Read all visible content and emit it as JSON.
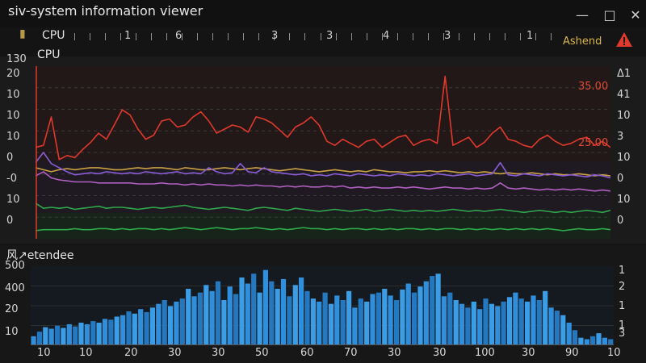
{
  "window": {
    "title": "siv-system information viewer",
    "minimize_icon": "minimize-icon",
    "maximize_icon": "maximize-icon",
    "close_icon": "close-icon"
  },
  "toolbar": {
    "pin_icon": "pin-icon",
    "cpu_label": "CPU",
    "ruler_labels": [
      "1",
      "6",
      "3",
      "3",
      "4",
      "3",
      "1"
    ],
    "status_text": "Ashend",
    "warning_icon": "warning-icon"
  },
  "colors": {
    "background": "#141414",
    "red": "#e0392b",
    "orange": "#c9a043",
    "purple": "#8a5cd6",
    "pink": "#b05fc0",
    "green": "#2ea84a",
    "blue": "#2f8fdc",
    "warning": "#e03a2e"
  },
  "cpu_panel": {
    "title": "CPU",
    "top_value": "130",
    "y_left": [
      "20",
      "10",
      "10",
      "10",
      "0",
      "-0",
      "10",
      "0"
    ],
    "y_right": [
      "Δ1",
      "41",
      "10",
      "3",
      "10",
      "0",
      "10",
      "0"
    ],
    "value_labels": [
      "35.00",
      "25.00"
    ],
    "chart_data": {
      "type": "line",
      "series": [
        {
          "color": "#e0392b",
          "values": [
            90,
            92,
            120,
            78,
            82,
            80,
            88,
            95,
            104,
            98,
            112,
            127,
            122,
            108,
            98,
            102,
            116,
            118,
            110,
            112,
            120,
            125,
            116,
            104,
            108,
            112,
            110,
            105,
            120,
            118,
            114,
            107,
            100,
            110,
            114,
            120,
            112,
            96,
            92,
            98,
            94,
            90,
            96,
            98,
            90,
            95,
            100,
            102,
            92,
            96,
            98,
            94,
            160,
            92,
            96,
            100,
            90,
            95,
            104,
            110,
            98,
            96,
            92,
            90,
            98,
            102,
            96,
            92,
            94,
            98,
            100,
            92,
            96,
            90
          ]
        },
        {
          "color": "#c9a043",
          "values": [
            70,
            68,
            66,
            68,
            69,
            68,
            69,
            70,
            70,
            69,
            68,
            68,
            69,
            70,
            69,
            70,
            70,
            69,
            68,
            70,
            69,
            68,
            68,
            69,
            70,
            69,
            68,
            69,
            70,
            69,
            68,
            67,
            68,
            69,
            68,
            67,
            66,
            67,
            68,
            67,
            66,
            67,
            66,
            68,
            67,
            66,
            66,
            65,
            66,
            66,
            67,
            66,
            67,
            66,
            65,
            66,
            65,
            66,
            65,
            64,
            65,
            64,
            64,
            65,
            64,
            63,
            64,
            63,
            63,
            64,
            63,
            62,
            63,
            62
          ]
        },
        {
          "color": "#8a5cd6",
          "values": [
            75,
            85,
            74,
            70,
            66,
            63,
            64,
            65,
            64,
            66,
            65,
            64,
            65,
            64,
            66,
            65,
            64,
            65,
            66,
            64,
            65,
            64,
            70,
            66,
            64,
            65,
            74,
            66,
            65,
            70,
            66,
            65,
            64,
            63,
            64,
            62,
            63,
            62,
            64,
            63,
            62,
            64,
            63,
            62,
            63,
            62,
            64,
            63,
            62,
            63,
            62,
            64,
            63,
            62,
            63,
            64,
            62,
            63,
            64,
            75,
            63,
            62,
            64,
            63,
            62,
            64,
            63,
            62,
            63,
            62,
            61,
            63,
            62,
            60
          ]
        },
        {
          "color": "#b05fc0",
          "values": [
            62,
            66,
            60,
            58,
            57,
            56,
            56,
            56,
            55,
            55,
            55,
            55,
            55,
            54,
            54,
            54,
            55,
            54,
            54,
            53,
            54,
            53,
            54,
            53,
            53,
            52,
            53,
            52,
            53,
            52,
            52,
            51,
            52,
            51,
            52,
            51,
            51,
            52,
            51,
            52,
            50,
            51,
            50,
            51,
            50,
            50,
            51,
            50,
            51,
            50,
            49,
            50,
            51,
            50,
            50,
            49,
            50,
            49,
            50,
            55,
            50,
            49,
            50,
            49,
            48,
            49,
            48,
            49,
            48,
            49,
            48,
            47,
            48,
            47
          ]
        },
        {
          "color": "#2ea84a",
          "values": [
            35,
            30,
            31,
            30,
            31,
            29,
            30,
            31,
            32,
            30,
            31,
            31,
            30,
            29,
            30,
            31,
            30,
            31,
            32,
            33,
            31,
            30,
            29,
            30,
            31,
            30,
            29,
            28,
            30,
            31,
            30,
            29,
            28,
            30,
            29,
            28,
            27,
            28,
            29,
            28,
            27,
            28,
            29,
            27,
            28,
            29,
            28,
            27,
            28,
            27,
            28,
            27,
            28,
            29,
            28,
            27,
            28,
            27,
            28,
            29,
            28,
            27,
            26,
            27,
            28,
            27,
            26,
            27,
            26,
            27,
            28,
            27,
            26,
            28
          ]
        },
        {
          "color": "#2ea84a",
          "values": [
            8,
            9,
            9,
            9,
            9,
            10,
            9,
            9,
            10,
            10,
            9,
            10,
            9,
            10,
            10,
            9,
            10,
            9,
            10,
            11,
            10,
            9,
            10,
            11,
            10,
            9,
            10,
            10,
            11,
            10,
            9,
            10,
            9,
            10,
            11,
            10,
            10,
            9,
            10,
            9,
            10,
            10,
            9,
            10,
            9,
            10,
            9,
            10,
            10,
            9,
            10,
            9,
            10,
            10,
            9,
            10,
            9,
            10,
            9,
            10,
            9,
            10,
            9,
            10,
            9,
            10,
            9,
            8,
            9,
            10,
            9,
            9,
            10,
            9
          ]
        }
      ],
      "ylim": [
        0,
        170
      ]
    }
  },
  "mem_panel": {
    "title": "风↗etendee",
    "y_left": [
      "500",
      "400",
      "20",
      "10"
    ],
    "y_right": [
      "1",
      "2",
      "1",
      "1",
      "3"
    ],
    "x_labels": [
      "10",
      "10",
      "20",
      "30",
      "30",
      "50",
      "60",
      "70",
      "30",
      "30",
      "100",
      "30",
      "90",
      "10"
    ],
    "chart_data": {
      "type": "bar",
      "values": [
        12,
        18,
        24,
        22,
        26,
        23,
        28,
        25,
        30,
        28,
        32,
        30,
        35,
        34,
        38,
        40,
        45,
        42,
        48,
        44,
        50,
        55,
        60,
        52,
        58,
        62,
        75,
        65,
        70,
        80,
        72,
        85,
        60,
        78,
        68,
        90,
        82,
        95,
        70,
        100,
        85,
        75,
        88,
        65,
        80,
        90,
        72,
        62,
        58,
        70,
        55,
        66,
        60,
        72,
        50,
        62,
        58,
        68,
        70,
        75,
        66,
        60,
        74,
        82,
        70,
        78,
        85,
        92,
        95,
        65,
        70,
        60,
        55,
        50,
        58,
        48,
        62,
        55,
        52,
        58,
        64,
        70,
        62,
        58,
        66,
        60,
        72,
        50,
        46,
        40,
        30,
        20,
        10,
        8,
        12,
        16,
        10,
        8
      ],
      "ylim": [
        0,
        105
      ]
    }
  }
}
